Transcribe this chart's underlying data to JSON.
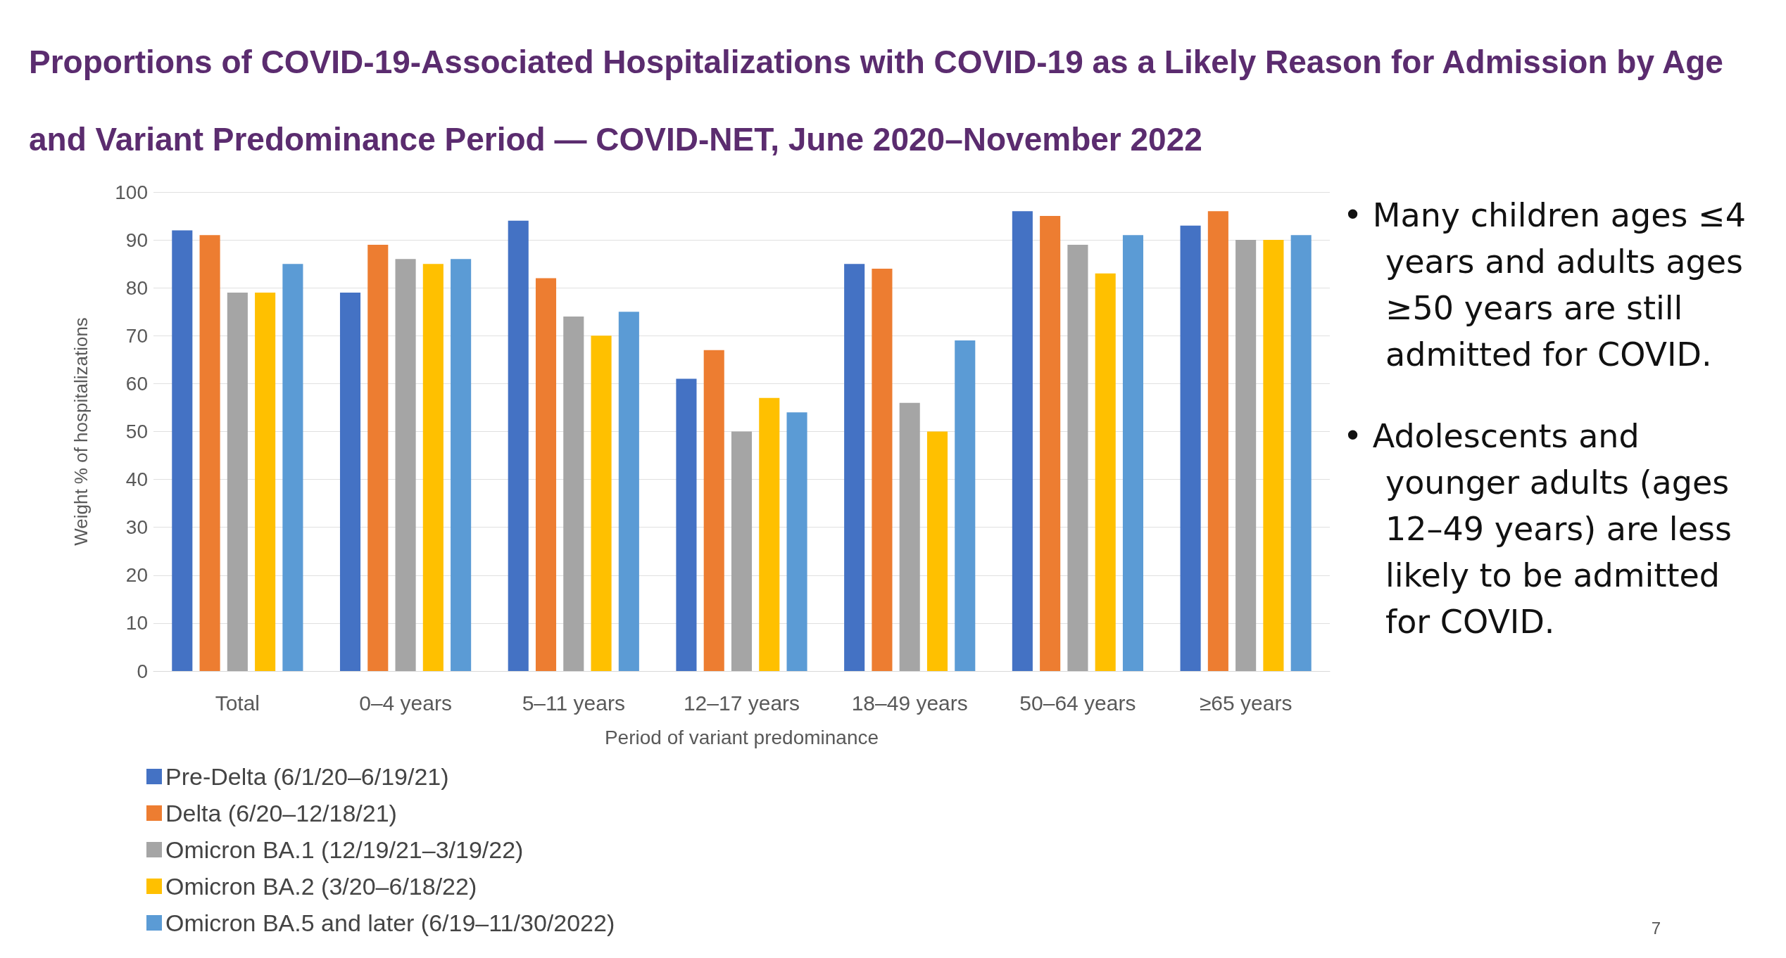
{
  "chart_data": {
    "type": "bar",
    "title": "Proportions of COVID-19-Associated Hospitalizations with COVID-19 as a Likely Reason for Admission by Age and Variant Predominance Period — COVID-NET, June 2020–November 2022",
    "xlabel": "Period of variant predominance",
    "ylabel": "Weight % of hospitalizations",
    "categories": [
      "Total",
      "0–4 years",
      "5–11 years",
      "12–17 years",
      "18–49 years",
      "50–64 years",
      "≥65 years"
    ],
    "series": [
      {
        "name": "Pre-Delta (6/1/20–6/19/21)",
        "color": "#4472c4",
        "values": [
          92,
          79,
          94,
          61,
          85,
          96,
          93
        ]
      },
      {
        "name": "Delta (6/20–12/18/21)",
        "color": "#ed7d31",
        "values": [
          91,
          89,
          82,
          67,
          84,
          95,
          96
        ]
      },
      {
        "name": "Omicron BA.1 (12/19/21–3/19/22)",
        "color": "#a5a5a5",
        "values": [
          79,
          86,
          74,
          50,
          56,
          89,
          90
        ]
      },
      {
        "name": "Omicron BA.2 (3/20–6/18/22)",
        "color": "#ffc000",
        "values": [
          79,
          85,
          70,
          57,
          50,
          83,
          90
        ]
      },
      {
        "name": "Omicron BA.5 and later (6/19–11/30/2022)",
        "color": "#5b9bd5",
        "values": [
          85,
          86,
          75,
          54,
          69,
          91,
          91
        ]
      }
    ],
    "ylim": [
      0,
      100
    ],
    "yticks": [
      0,
      10,
      20,
      30,
      40,
      50,
      60,
      70,
      80,
      90,
      100
    ],
    "grid": "y",
    "legend": "bottom left",
    "annotations": [
      "• Many children ages ≤4 years and adults ages ≥50 years are still admitted for COVID.",
      "• Adolescents and younger adults (ages 12–49 years) are less likely to be admitted for COVID.",
      "7"
    ]
  }
}
